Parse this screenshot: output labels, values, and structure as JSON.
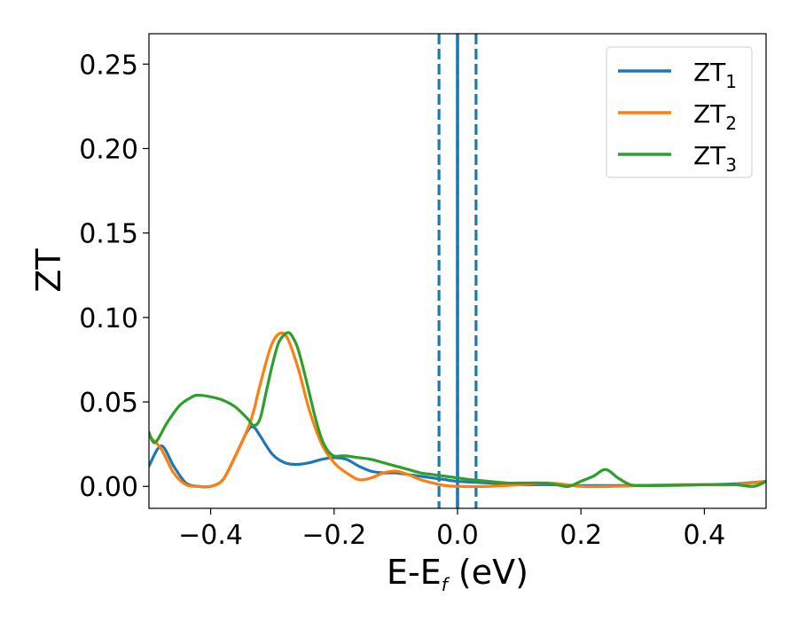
{
  "chart_data": {
    "type": "line",
    "title": "",
    "xlabel": "E-E",
    "xlabel_sub": "f",
    "xlabel_unit": " (eV)",
    "ylabel": "ZT",
    "xlim": [
      -0.5,
      0.5
    ],
    "ylim": [
      -0.013,
      0.268
    ],
    "xticks": [
      -0.4,
      -0.2,
      0.0,
      0.2,
      0.4
    ],
    "xtick_labels": [
      "−0.4",
      "−0.2",
      "0.0",
      "0.2",
      "0.4"
    ],
    "yticks": [
      0.0,
      0.05,
      0.1,
      0.15,
      0.2,
      0.25
    ],
    "ytick_labels": [
      "0.00",
      "0.05",
      "0.10",
      "0.15",
      "0.20",
      "0.25"
    ],
    "grid": false,
    "legend_position": "top-right",
    "vlines": [
      {
        "x": 0.0,
        "color": "#000000",
        "style": "dashed"
      },
      {
        "x": 0.0,
        "color": "#1f77b4",
        "style": "solid"
      },
      {
        "x": -0.03,
        "color": "#1f77b4",
        "style": "dashed"
      },
      {
        "x": 0.03,
        "color": "#1f77b4",
        "style": "dashed"
      }
    ],
    "series": [
      {
        "name": "ZT",
        "name_sub": "1",
        "color": "#1f77b4",
        "x": [
          -0.5,
          -0.48,
          -0.46,
          -0.44,
          -0.42,
          -0.4,
          -0.38,
          -0.36,
          -0.34,
          -0.33,
          -0.32,
          -0.3,
          -0.28,
          -0.26,
          -0.24,
          -0.22,
          -0.2,
          -0.18,
          -0.16,
          -0.14,
          -0.12,
          -0.1,
          -0.08,
          -0.06,
          -0.04,
          -0.02,
          0.0,
          0.05,
          0.1,
          0.15,
          0.2,
          0.25,
          0.3,
          0.35,
          0.4,
          0.45,
          0.5
        ],
        "y": [
          0.012,
          0.024,
          0.012,
          0.002,
          0.0,
          0.0,
          0.004,
          0.018,
          0.033,
          0.035,
          0.03,
          0.019,
          0.014,
          0.013,
          0.014,
          0.016,
          0.017,
          0.016,
          0.012,
          0.009,
          0.008,
          0.008,
          0.007,
          0.006,
          0.005,
          0.004,
          0.003,
          0.002,
          0.001,
          0.001,
          0.0005,
          0.0005,
          0.0006,
          0.0008,
          0.001,
          0.0015,
          0.003
        ]
      },
      {
        "name": "ZT",
        "name_sub": "2",
        "color": "#ff7f0e",
        "x": [
          -0.5,
          -0.48,
          -0.46,
          -0.44,
          -0.42,
          -0.4,
          -0.38,
          -0.36,
          -0.34,
          -0.33,
          -0.32,
          -0.3,
          -0.28,
          -0.26,
          -0.24,
          -0.22,
          -0.2,
          -0.18,
          -0.16,
          -0.14,
          -0.12,
          -0.1,
          -0.08,
          -0.06,
          -0.04,
          -0.02,
          0.0,
          0.05,
          0.1,
          0.15,
          0.2,
          0.25,
          0.3,
          0.35,
          0.4,
          0.45,
          0.5
        ],
        "y": [
          0.03,
          0.022,
          0.008,
          0.001,
          0.0,
          0.0,
          0.004,
          0.018,
          0.034,
          0.045,
          0.06,
          0.085,
          0.09,
          0.072,
          0.045,
          0.025,
          0.014,
          0.008,
          0.004,
          0.005,
          0.008,
          0.009,
          0.007,
          0.004,
          0.002,
          0.0005,
          0.0,
          0.0,
          0.001,
          0.002,
          0.0,
          0.0,
          0.0005,
          0.001,
          0.001,
          0.001,
          0.003
        ]
      },
      {
        "name": "ZT",
        "name_sub": "3",
        "color": "#2ca02c",
        "x": [
          -0.5,
          -0.49,
          -0.47,
          -0.45,
          -0.43,
          -0.42,
          -0.4,
          -0.38,
          -0.36,
          -0.34,
          -0.33,
          -0.32,
          -0.31,
          -0.3,
          -0.29,
          -0.28,
          -0.275,
          -0.27,
          -0.26,
          -0.25,
          -0.24,
          -0.23,
          -0.22,
          -0.21,
          -0.2,
          -0.19,
          -0.18,
          -0.16,
          -0.14,
          -0.12,
          -0.1,
          -0.08,
          -0.06,
          -0.04,
          -0.02,
          0.0,
          0.02,
          0.05,
          0.08,
          0.1,
          0.12,
          0.14,
          0.16,
          0.18,
          0.2,
          0.22,
          0.24,
          0.26,
          0.28,
          0.3,
          0.35,
          0.4,
          0.45,
          0.48,
          0.5
        ],
        "y": [
          0.032,
          0.026,
          0.038,
          0.048,
          0.053,
          0.054,
          0.053,
          0.051,
          0.047,
          0.04,
          0.036,
          0.04,
          0.056,
          0.072,
          0.085,
          0.09,
          0.091,
          0.09,
          0.083,
          0.07,
          0.055,
          0.04,
          0.028,
          0.021,
          0.018,
          0.018,
          0.018,
          0.017,
          0.016,
          0.014,
          0.012,
          0.01,
          0.008,
          0.007,
          0.006,
          0.005,
          0.004,
          0.003,
          0.002,
          0.002,
          0.002,
          0.002,
          0.001,
          0.0,
          0.003,
          0.006,
          0.01,
          0.005,
          0.001,
          0.0005,
          0.0006,
          0.001,
          0.001,
          0.0,
          0.003
        ]
      }
    ]
  }
}
